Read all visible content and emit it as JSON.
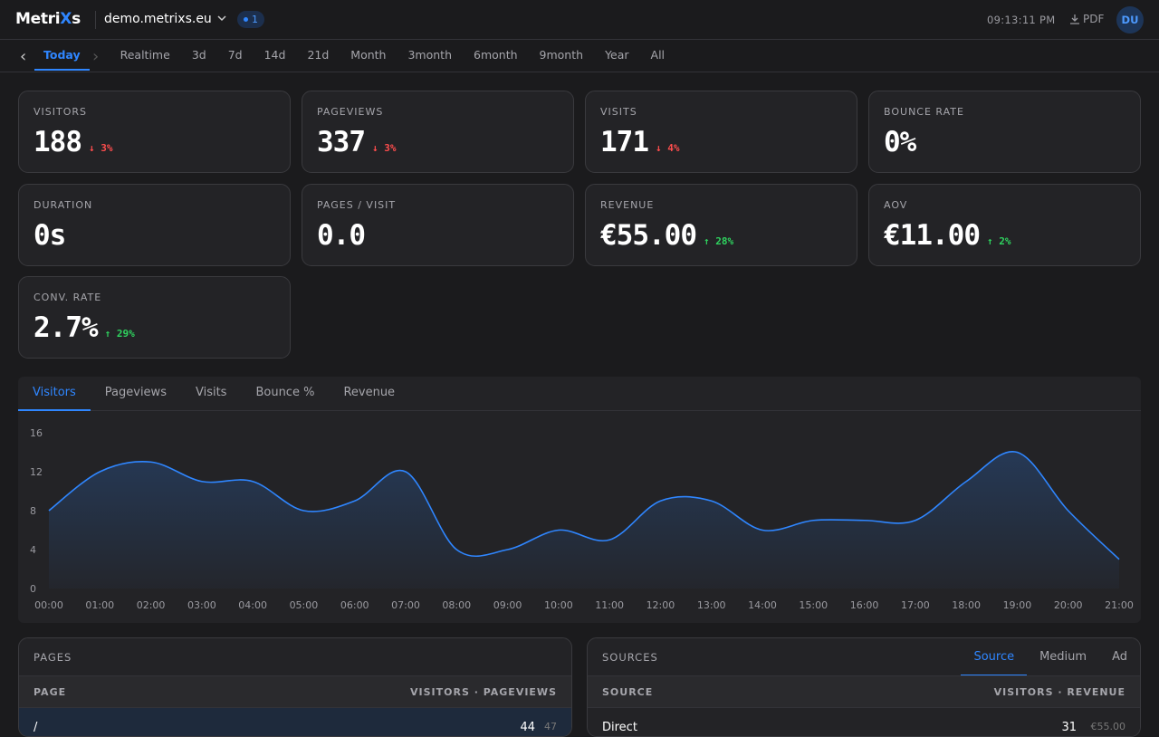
{
  "header": {
    "logo": [
      "Metri",
      "X",
      "s"
    ],
    "site": "demo.metrixs.eu",
    "live": "1",
    "time": "09:13:11 PM",
    "pdf": "PDF",
    "avatar": "DU"
  },
  "ranges": {
    "items": [
      "Today",
      "Realtime",
      "3d",
      "7d",
      "14d",
      "21d",
      "Month",
      "3month",
      "6month",
      "9month",
      "Year",
      "All"
    ],
    "active": 0
  },
  "stats": [
    {
      "label": "VISITORS",
      "value": "188",
      "trend": "down",
      "change": "3%"
    },
    {
      "label": "PAGEVIEWS",
      "value": "337",
      "trend": "down",
      "change": "3%"
    },
    {
      "label": "VISITS",
      "value": "171",
      "trend": "down",
      "change": "4%"
    },
    {
      "label": "BOUNCE RATE",
      "value": "0%"
    },
    {
      "label": "DURATION",
      "value": "0s"
    },
    {
      "label": "PAGES / VISIT",
      "value": "0.0"
    },
    {
      "label": "REVENUE",
      "value": "€55.00",
      "trend": "up",
      "change": "28%"
    },
    {
      "label": "AOV",
      "value": "€11.00",
      "trend": "up",
      "change": "2%"
    },
    {
      "label": "CONV. RATE",
      "value": "2.7%",
      "trend": "up",
      "change": "29%"
    }
  ],
  "chart_tabs": {
    "items": [
      "Visitors",
      "Pageviews",
      "Visits",
      "Bounce %",
      "Revenue"
    ],
    "active": 0
  },
  "chart_data": {
    "type": "line",
    "categories": [
      "00:00",
      "01:00",
      "02:00",
      "03:00",
      "04:00",
      "05:00",
      "06:00",
      "07:00",
      "08:00",
      "09:00",
      "10:00",
      "11:00",
      "12:00",
      "13:00",
      "14:00",
      "15:00",
      "16:00",
      "17:00",
      "18:00",
      "19:00",
      "20:00",
      "21:00"
    ],
    "series": [
      {
        "name": "Visitors",
        "color": "#2f86ff",
        "values": [
          8,
          12,
          13,
          11,
          11,
          8,
          9,
          12,
          4,
          4,
          6,
          5,
          9,
          9,
          6,
          7,
          7,
          7,
          11,
          14,
          8,
          3
        ]
      }
    ],
    "ylim": [
      0,
      16
    ],
    "yticks": [
      0,
      4,
      8,
      12,
      16
    ],
    "grid": false
  },
  "pages": {
    "title": "PAGES",
    "columns": [
      "PAGE",
      "VISITORS · PAGEVIEWS"
    ],
    "rows": [
      [
        "/",
        "44",
        "47"
      ]
    ]
  },
  "sources": {
    "title": "SOURCES",
    "tabs": [
      "Source",
      "Medium",
      "Ad"
    ],
    "active": 0,
    "columns": [
      "SOURCE",
      "VISITORS · REVENUE"
    ],
    "rows": [
      [
        "Direct",
        "31",
        "€55.00"
      ]
    ]
  }
}
